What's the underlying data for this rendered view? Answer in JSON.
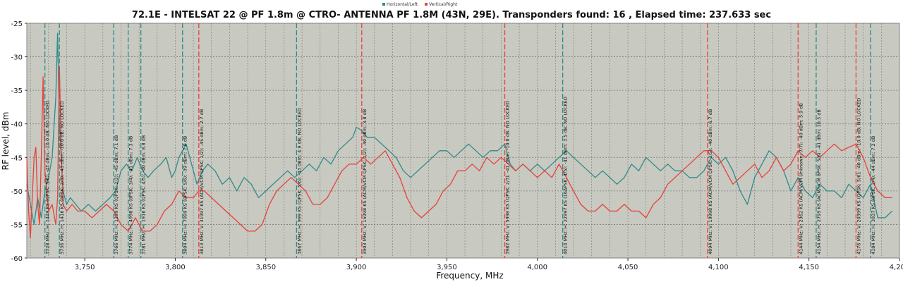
{
  "chart_data": {
    "type": "line",
    "title": "72.1E - INTELSAT 22 @ PF 1.8m @ CTRO- ANTENNA PF 1.8M (43N, 29E). Transponders found: 16 , Elapsed time: 237.633 sec",
    "xlabel": "Frequency, MHz",
    "ylabel": "RF level, dBm",
    "xlim": [
      3718,
      4200
    ],
    "ylim": [
      -60,
      -25
    ],
    "x_ticks": [
      3750,
      3800,
      3850,
      3900,
      3950,
      4000,
      4050,
      4100,
      4150,
      4200
    ],
    "x_tick_labels": [
      "3,750",
      "3,800",
      "3,850",
      "3,900",
      "3,950",
      "4,000",
      "4,050",
      "4,100",
      "4,150",
      "4,200"
    ],
    "y_ticks": [
      -25,
      -30,
      -35,
      -40,
      -45,
      -50,
      -55,
      -60
    ],
    "y_tick_labels": [
      "-25",
      "-30",
      "-35",
      "-40",
      "-45",
      "-50",
      "-55",
      "-60"
    ],
    "grid": true,
    "legend_position": "top-center",
    "background_color": "#c8c9c0",
    "series": [
      {
        "name": "Horizontal/Left",
        "color": "#2e8b8b",
        "points": [
          [
            3718,
            -49
          ],
          [
            3720,
            -52
          ],
          [
            3722,
            -55
          ],
          [
            3724,
            -51
          ],
          [
            3726,
            -54
          ],
          [
            3728,
            -50
          ],
          [
            3730,
            -48
          ],
          [
            3732,
            -45
          ],
          [
            3734,
            -36
          ],
          [
            3735,
            -26.5
          ],
          [
            3736,
            -40
          ],
          [
            3738,
            -50
          ],
          [
            3740,
            -52
          ],
          [
            3742,
            -51
          ],
          [
            3745,
            -52
          ],
          [
            3748,
            -53
          ],
          [
            3752,
            -52
          ],
          [
            3756,
            -53
          ],
          [
            3760,
            -52
          ],
          [
            3764,
            -51
          ],
          [
            3767,
            -50
          ],
          [
            3770,
            -47
          ],
          [
            3773,
            -46
          ],
          [
            3776,
            -47
          ],
          [
            3779,
            -45
          ],
          [
            3782,
            -47
          ],
          [
            3785,
            -48
          ],
          [
            3788,
            -47
          ],
          [
            3792,
            -46
          ],
          [
            3795,
            -45
          ],
          [
            3798,
            -48
          ],
          [
            3800,
            -47
          ],
          [
            3802,
            -45
          ],
          [
            3804,
            -44
          ],
          [
            3806,
            -43
          ],
          [
            3808,
            -45
          ],
          [
            3810,
            -47
          ],
          [
            3812,
            -49
          ],
          [
            3815,
            -47
          ],
          [
            3818,
            -46
          ],
          [
            3822,
            -47
          ],
          [
            3826,
            -49
          ],
          [
            3830,
            -48
          ],
          [
            3834,
            -50
          ],
          [
            3838,
            -48
          ],
          [
            3842,
            -49
          ],
          [
            3846,
            -51
          ],
          [
            3850,
            -50
          ],
          [
            3854,
            -49
          ],
          [
            3858,
            -48
          ],
          [
            3862,
            -47
          ],
          [
            3866,
            -48
          ],
          [
            3870,
            -47
          ],
          [
            3874,
            -46
          ],
          [
            3878,
            -47
          ],
          [
            3882,
            -45
          ],
          [
            3886,
            -46
          ],
          [
            3890,
            -44
          ],
          [
            3894,
            -43
          ],
          [
            3898,
            -42
          ],
          [
            3900,
            -40.5
          ],
          [
            3903,
            -41
          ],
          [
            3906,
            -42
          ],
          [
            3910,
            -42
          ],
          [
            3914,
            -43
          ],
          [
            3918,
            -44
          ],
          [
            3922,
            -45
          ],
          [
            3926,
            -47
          ],
          [
            3930,
            -48
          ],
          [
            3934,
            -47
          ],
          [
            3938,
            -46
          ],
          [
            3942,
            -45
          ],
          [
            3946,
            -44
          ],
          [
            3950,
            -44
          ],
          [
            3954,
            -45
          ],
          [
            3958,
            -44
          ],
          [
            3962,
            -43
          ],
          [
            3966,
            -44
          ],
          [
            3970,
            -45
          ],
          [
            3974,
            -44
          ],
          [
            3978,
            -44
          ],
          [
            3982,
            -43
          ],
          [
            3985,
            -46
          ],
          [
            3988,
            -47
          ],
          [
            3992,
            -46
          ],
          [
            3996,
            -47
          ],
          [
            4000,
            -46
          ],
          [
            4004,
            -47
          ],
          [
            4008,
            -46
          ],
          [
            4012,
            -45
          ],
          [
            4016,
            -44
          ],
          [
            4020,
            -45
          ],
          [
            4024,
            -46
          ],
          [
            4028,
            -47
          ],
          [
            4032,
            -48
          ],
          [
            4036,
            -47
          ],
          [
            4040,
            -48
          ],
          [
            4044,
            -49
          ],
          [
            4048,
            -48
          ],
          [
            4052,
            -46
          ],
          [
            4056,
            -47
          ],
          [
            4060,
            -45
          ],
          [
            4064,
            -46
          ],
          [
            4068,
            -47
          ],
          [
            4072,
            -46
          ],
          [
            4076,
            -47
          ],
          [
            4080,
            -47
          ],
          [
            4084,
            -48
          ],
          [
            4088,
            -48
          ],
          [
            4092,
            -47
          ],
          [
            4096,
            -45
          ],
          [
            4100,
            -46
          ],
          [
            4104,
            -45
          ],
          [
            4108,
            -47
          ],
          [
            4112,
            -50
          ],
          [
            4116,
            -52
          ],
          [
            4120,
            -48
          ],
          [
            4124,
            -46
          ],
          [
            4128,
            -44
          ],
          [
            4132,
            -45
          ],
          [
            4136,
            -47
          ],
          [
            4140,
            -50
          ],
          [
            4144,
            -48
          ],
          [
            4148,
            -50
          ],
          [
            4152,
            -51
          ],
          [
            4156,
            -49
          ],
          [
            4160,
            -50
          ],
          [
            4164,
            -50
          ],
          [
            4168,
            -51
          ],
          [
            4172,
            -49
          ],
          [
            4176,
            -50
          ],
          [
            4180,
            -51
          ],
          [
            4184,
            -49
          ],
          [
            4188,
            -54
          ],
          [
            4192,
            -54
          ],
          [
            4196,
            -53
          ]
        ]
      },
      {
        "name": "Vertical/Right",
        "color": "#e8413c",
        "points": [
          [
            3718,
            -45
          ],
          [
            3719,
            -53
          ],
          [
            3720,
            -57
          ],
          [
            3721,
            -51
          ],
          [
            3722,
            -45
          ],
          [
            3723,
            -43.5
          ],
          [
            3724,
            -52
          ],
          [
            3725,
            -55
          ],
          [
            3726,
            -45
          ],
          [
            3727,
            -33
          ],
          [
            3728,
            -47
          ],
          [
            3730,
            -53
          ],
          [
            3732,
            -52
          ],
          [
            3734,
            -55
          ],
          [
            3735,
            -51
          ],
          [
            3736,
            -31.5
          ],
          [
            3737,
            -44
          ],
          [
            3738,
            -52
          ],
          [
            3740,
            -53
          ],
          [
            3743,
            -52
          ],
          [
            3746,
            -53
          ],
          [
            3750,
            -53
          ],
          [
            3754,
            -54
          ],
          [
            3758,
            -53
          ],
          [
            3762,
            -52
          ],
          [
            3766,
            -53
          ],
          [
            3770,
            -55
          ],
          [
            3774,
            -56
          ],
          [
            3778,
            -54
          ],
          [
            3782,
            -56
          ],
          [
            3786,
            -56
          ],
          [
            3790,
            -55
          ],
          [
            3794,
            -53
          ],
          [
            3798,
            -52
          ],
          [
            3802,
            -50
          ],
          [
            3806,
            -51
          ],
          [
            3810,
            -51
          ],
          [
            3813,
            -50
          ],
          [
            3816,
            -50
          ],
          [
            3820,
            -51
          ],
          [
            3824,
            -52
          ],
          [
            3828,
            -53
          ],
          [
            3832,
            -54
          ],
          [
            3836,
            -55
          ],
          [
            3840,
            -56
          ],
          [
            3844,
            -56
          ],
          [
            3848,
            -55
          ],
          [
            3852,
            -52
          ],
          [
            3856,
            -50
          ],
          [
            3860,
            -49
          ],
          [
            3864,
            -48
          ],
          [
            3868,
            -49
          ],
          [
            3872,
            -50
          ],
          [
            3876,
            -52
          ],
          [
            3880,
            -52
          ],
          [
            3884,
            -51
          ],
          [
            3888,
            -49
          ],
          [
            3892,
            -47
          ],
          [
            3896,
            -46
          ],
          [
            3900,
            -46
          ],
          [
            3904,
            -45
          ],
          [
            3908,
            -46
          ],
          [
            3912,
            -45
          ],
          [
            3916,
            -44
          ],
          [
            3920,
            -46
          ],
          [
            3924,
            -48
          ],
          [
            3928,
            -51
          ],
          [
            3932,
            -53
          ],
          [
            3936,
            -54
          ],
          [
            3940,
            -53
          ],
          [
            3944,
            -52
          ],
          [
            3948,
            -50
          ],
          [
            3952,
            -49
          ],
          [
            3956,
            -47
          ],
          [
            3960,
            -47
          ],
          [
            3964,
            -46
          ],
          [
            3968,
            -47
          ],
          [
            3972,
            -45
          ],
          [
            3976,
            -46
          ],
          [
            3980,
            -45
          ],
          [
            3984,
            -46
          ],
          [
            3988,
            -47
          ],
          [
            3992,
            -46
          ],
          [
            3996,
            -47
          ],
          [
            4000,
            -48
          ],
          [
            4004,
            -47
          ],
          [
            4008,
            -48
          ],
          [
            4012,
            -46
          ],
          [
            4016,
            -48
          ],
          [
            4020,
            -50
          ],
          [
            4024,
            -52
          ],
          [
            4028,
            -53
          ],
          [
            4032,
            -53
          ],
          [
            4036,
            -52
          ],
          [
            4040,
            -53
          ],
          [
            4044,
            -53
          ],
          [
            4048,
            -52
          ],
          [
            4052,
            -53
          ],
          [
            4056,
            -53
          ],
          [
            4060,
            -54
          ],
          [
            4064,
            -52
          ],
          [
            4068,
            -51
          ],
          [
            4072,
            -49
          ],
          [
            4076,
            -48
          ],
          [
            4080,
            -47
          ],
          [
            4084,
            -46
          ],
          [
            4088,
            -45
          ],
          [
            4092,
            -44
          ],
          [
            4096,
            -44
          ],
          [
            4100,
            -45
          ],
          [
            4104,
            -47
          ],
          [
            4108,
            -49
          ],
          [
            4112,
            -48
          ],
          [
            4116,
            -47
          ],
          [
            4120,
            -46
          ],
          [
            4124,
            -48
          ],
          [
            4128,
            -47
          ],
          [
            4132,
            -45
          ],
          [
            4136,
            -47
          ],
          [
            4140,
            -46
          ],
          [
            4144,
            -44
          ],
          [
            4148,
            -45
          ],
          [
            4152,
            -44
          ],
          [
            4156,
            -45
          ],
          [
            4160,
            -44
          ],
          [
            4164,
            -43
          ],
          [
            4168,
            -44
          ],
          [
            4172,
            -43.5
          ],
          [
            4176,
            -43
          ],
          [
            4180,
            -45
          ],
          [
            4184,
            -48
          ],
          [
            4188,
            -50
          ],
          [
            4192,
            -51
          ],
          [
            4196,
            -51
          ]
        ]
      }
    ],
    "transponders": [
      {
        "freq": 3728,
        "pol": "H",
        "label": "3728 MHz; H; 1449 KS (QPSK; 5/6); -47 dBm; -10.0 dB; NO LOCKED"
      },
      {
        "freq": 3736,
        "pol": "H",
        "label": "3736 MHz; H; 1416 KS (8PSK; 2/3); -43 dBm; -10.0 dB; NO LOCKED"
      },
      {
        "freq": 3766,
        "pol": "H",
        "label": "3766 MHz; H; 1299 KS (QPSK; 2/3); -45 dBm; 7.1 dB"
      },
      {
        "freq": 3774,
        "pol": "H",
        "label": "3774 MHz; H; 4998 KS (8PSK; 3/4); -41 dBm; 7.3 dB"
      },
      {
        "freq": 3781,
        "pol": "H",
        "label": "3781 MHz; H; 1916 KS (QPSK; 4/5); -40 dBm; 8.8 dB"
      },
      {
        "freq": 3804,
        "pol": "H",
        "label": "3804 MHz; H; 7999 KS (8PSK; 5/6); -39 dBm; 7.0 dB"
      },
      {
        "freq": 3813,
        "pol": "V",
        "label": "3813 MHz; V; 31997 KS (ACM/VCM QPSK; 1/2); -45 dBm; 2.7 dB"
      },
      {
        "freq": 3867,
        "pol": "H",
        "label": "3867 MHz; H; 999 KS (QPSK; 5/6); -43 dBm; 4.9 dB; NO LOCKED"
      },
      {
        "freq": 3903,
        "pol": "V",
        "label": "3903 MHz; V; 15998 KS (ACM/VCM QPSK; 1/2); -40 dBm; 3.8 dB"
      },
      {
        "freq": 3982,
        "pol": "V",
        "label": "3982 MHz; V; 5998 KS (QPSK; 2/3); -41 dBm; -10.0 dB; NO LOCKED"
      },
      {
        "freq": 4014,
        "pol": "H",
        "label": "4014 MHz; H; 22997 KS (16APSK; 4/5); -41 dBm; 3.5 dB; NO LOCKED"
      },
      {
        "freq": 4094,
        "pol": "V",
        "label": "4094 MHz; V; 19998 KS (ACM/VCM QPSK; 3/5); -40 dBm; 6.7 dB"
      },
      {
        "freq": 4144,
        "pol": "V",
        "label": "4144 MHz; V; 2362 KS (ACM/VCM Unknown; 7/7); -40 dBm; 5.9 dB"
      },
      {
        "freq": 4154,
        "pol": "H",
        "label": "4154 MHz; H; 2795 KS (ACM/VCM 8PSK; 5/6); -41 dBm; 10.3 dB"
      },
      {
        "freq": 4176,
        "pol": "V",
        "label": "4176 MHz; V; 20399 KS (QPSK; 5/6); -40 dBm; -10.0 dB; NO LOCKED"
      },
      {
        "freq": 4184,
        "pol": "H",
        "label": "4184 MHz; H; 3937 KS (8PSK; 3/4); -44 dBm; 7.2 dB"
      }
    ]
  }
}
